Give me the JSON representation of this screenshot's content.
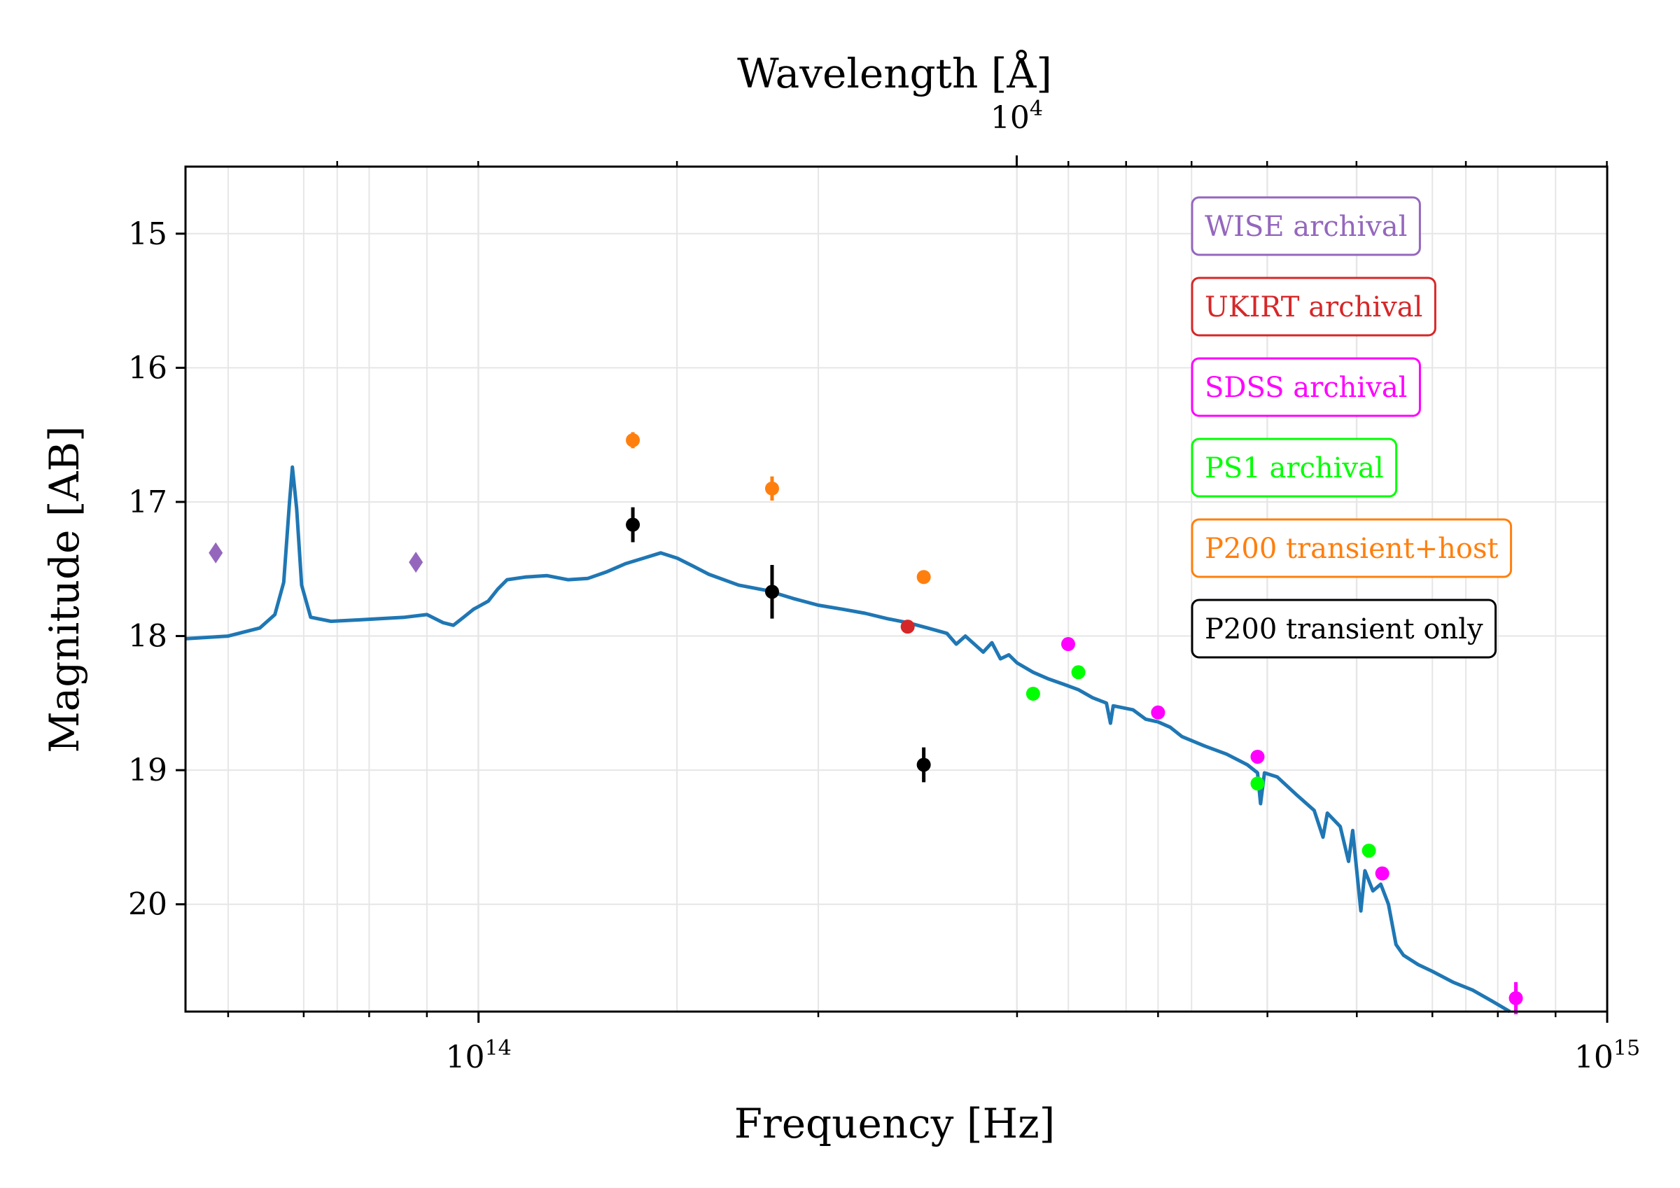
{
  "chart_data": {
    "type": "scatter",
    "xlabel": "Frequency [Hz]",
    "ylabel": "Magnitude [AB]",
    "top_xlabel": "Wavelength [Å]",
    "x_scale": "log",
    "xlim": [
      55000000000000.0,
      1000000000000000.0
    ],
    "ylim": [
      20.8,
      14.5
    ],
    "y_inverted": true,
    "grid": true,
    "legend_position": "upper right",
    "x_ticks": [
      {
        "value": 100000000000000.0,
        "base": "10",
        "exp": "14"
      },
      {
        "value": 1000000000000000.0,
        "base": "10",
        "exp": "15"
      }
    ],
    "y_ticks": [
      {
        "value": 15,
        "label": "15"
      },
      {
        "value": 16,
        "label": "16"
      },
      {
        "value": 17,
        "label": "17"
      },
      {
        "value": 18,
        "label": "18"
      },
      {
        "value": 19,
        "label": "19"
      },
      {
        "value": 20,
        "label": "20"
      }
    ],
    "top_ticks": [
      {
        "wavelength": 10000,
        "base": "10",
        "exp": "4"
      }
    ],
    "top_minor_wavelengths": [
      40000,
      30000,
      20000,
      9000,
      8000,
      7000,
      6000,
      5000,
      4000,
      3000
    ],
    "spectrum": {
      "color": "#1f77b4",
      "points": [
        [
          55000000000000.0,
          18.02
        ],
        [
          60000000000000.0,
          18.0
        ],
        [
          64000000000000.0,
          17.94
        ],
        [
          66000000000000.0,
          17.84
        ],
        [
          67200000000000.0,
          17.6
        ],
        [
          68000000000000.0,
          17.0
        ],
        [
          68400000000000.0,
          16.74
        ],
        [
          69000000000000.0,
          17.05
        ],
        [
          69700000000000.0,
          17.62
        ],
        [
          71000000000000.0,
          17.86
        ],
        [
          74000000000000.0,
          17.89
        ],
        [
          78000000000000.0,
          17.88
        ],
        [
          82000000000000.0,
          17.87
        ],
        [
          86000000000000.0,
          17.86
        ],
        [
          90000000000000.0,
          17.84
        ],
        [
          93000000000000.0,
          17.9
        ],
        [
          95000000000000.0,
          17.92
        ],
        [
          97000000000000.0,
          17.86
        ],
        [
          99000000000000.0,
          17.8
        ],
        [
          100000000000000.0,
          17.78
        ],
        [
          102000000000000.0,
          17.74
        ],
        [
          104000000000000.0,
          17.65
        ],
        [
          106000000000000.0,
          17.58
        ],
        [
          110000000000000.0,
          17.56
        ],
        [
          115000000000000.0,
          17.55
        ],
        [
          120000000000000.0,
          17.58
        ],
        [
          125000000000000.0,
          17.57
        ],
        [
          130000000000000.0,
          17.52
        ],
        [
          135000000000000.0,
          17.46
        ],
        [
          140000000000000.0,
          17.42
        ],
        [
          145000000000000.0,
          17.38
        ],
        [
          150000000000000.0,
          17.42
        ],
        [
          155000000000000.0,
          17.48
        ],
        [
          160000000000000.0,
          17.54
        ],
        [
          170000000000000.0,
          17.62
        ],
        [
          180000000000000.0,
          17.66
        ],
        [
          190000000000000.0,
          17.72
        ],
        [
          200000000000000.0,
          17.77
        ],
        [
          210000000000000.0,
          17.8
        ],
        [
          220000000000000.0,
          17.83
        ],
        [
          230000000000000.0,
          17.87
        ],
        [
          240000000000000.0,
          17.9
        ],
        [
          250000000000000.0,
          17.94
        ],
        [
          260000000000000.0,
          17.98
        ],
        [
          265000000000000.0,
          18.06
        ],
        [
          270000000000000.0,
          18.0
        ],
        [
          280000000000000.0,
          18.12
        ],
        [
          285000000000000.0,
          18.05
        ],
        [
          290000000000000.0,
          18.17
        ],
        [
          295000000000000.0,
          18.14
        ],
        [
          300000000000000.0,
          18.2
        ],
        [
          310000000000000.0,
          18.27
        ],
        [
          320000000000000.0,
          18.32
        ],
        [
          330000000000000.0,
          18.36
        ],
        [
          340000000000000.0,
          18.4
        ],
        [
          350000000000000.0,
          18.46
        ],
        [
          360000000000000.0,
          18.5
        ],
        [
          363000000000000.0,
          18.65
        ],
        [
          365000000000000.0,
          18.52
        ],
        [
          380000000000000.0,
          18.55
        ],
        [
          390000000000000.0,
          18.62
        ],
        [
          400000000000000.0,
          18.64
        ],
        [
          410000000000000.0,
          18.68
        ],
        [
          420000000000000.0,
          18.75
        ],
        [
          440000000000000.0,
          18.82
        ],
        [
          460000000000000.0,
          18.88
        ],
        [
          480000000000000.0,
          18.96
        ],
        [
          490000000000000.0,
          19.02
        ],
        [
          493000000000000.0,
          19.25
        ],
        [
          497000000000000.0,
          19.02
        ],
        [
          510000000000000.0,
          19.05
        ],
        [
          530000000000000.0,
          19.18
        ],
        [
          550000000000000.0,
          19.3
        ],
        [
          560000000000000.0,
          19.5
        ],
        [
          565000000000000.0,
          19.32
        ],
        [
          580000000000000.0,
          19.42
        ],
        [
          590000000000000.0,
          19.68
        ],
        [
          595000000000000.0,
          19.45
        ],
        [
          605000000000000.0,
          20.05
        ],
        [
          610000000000000.0,
          19.75
        ],
        [
          620000000000000.0,
          19.9
        ],
        [
          630000000000000.0,
          19.85
        ],
        [
          640000000000000.0,
          20.0
        ],
        [
          650000000000000.0,
          20.3
        ],
        [
          660000000000000.0,
          20.38
        ],
        [
          680000000000000.0,
          20.45
        ],
        [
          700000000000000.0,
          20.5
        ],
        [
          730000000000000.0,
          20.58
        ],
        [
          760000000000000.0,
          20.64
        ],
        [
          790000000000000.0,
          20.72
        ],
        [
          820000000000000.0,
          20.8
        ]
      ]
    },
    "series": [
      {
        "name": "WISE archival",
        "color": "#9467bd",
        "marker": "diamond",
        "points": [
          {
            "x": 58500000000000.0,
            "y": 17.38,
            "err": 0
          },
          {
            "x": 88000000000000.0,
            "y": 17.45,
            "err": 0
          }
        ]
      },
      {
        "name": "UKIRT archival",
        "color": "#d62728",
        "marker": "circle",
        "points": [
          {
            "x": 240000000000000.0,
            "y": 17.93,
            "err": 0
          }
        ]
      },
      {
        "name": "SDSS archival",
        "color": "#ff00ff",
        "marker": "circle",
        "points": [
          {
            "x": 333000000000000.0,
            "y": 18.06,
            "err": 0
          },
          {
            "x": 400000000000000.0,
            "y": 18.57,
            "err": 0
          },
          {
            "x": 490000000000000.0,
            "y": 18.9,
            "err": 0
          },
          {
            "x": 632000000000000.0,
            "y": 19.77,
            "err": 0
          },
          {
            "x": 830000000000000.0,
            "y": 20.7,
            "err": 0.12
          }
        ]
      },
      {
        "name": "PS1 archival",
        "color": "#00ff00",
        "marker": "circle",
        "points": [
          {
            "x": 310000000000000.0,
            "y": 18.43,
            "err": 0
          },
          {
            "x": 340000000000000.0,
            "y": 18.27,
            "err": 0
          },
          {
            "x": 490000000000000.0,
            "y": 19.1,
            "err": 0
          },
          {
            "x": 615000000000000.0,
            "y": 19.6,
            "err": 0
          }
        ]
      },
      {
        "name": "P200 transient+host",
        "color": "#ff7f0e",
        "marker": "circle",
        "points": [
          {
            "x": 137000000000000.0,
            "y": 16.54,
            "err": 0.06
          },
          {
            "x": 182000000000000.0,
            "y": 16.9,
            "err": 0.09
          },
          {
            "x": 248000000000000.0,
            "y": 17.56,
            "err": 0
          }
        ]
      },
      {
        "name": "P200 transient only",
        "color": "#000000",
        "marker": "circle",
        "points": [
          {
            "x": 137000000000000.0,
            "y": 17.17,
            "err": 0.13
          },
          {
            "x": 182000000000000.0,
            "y": 17.67,
            "err": 0.2
          },
          {
            "x": 248000000000000.0,
            "y": 18.96,
            "err": 0.13
          }
        ]
      }
    ]
  }
}
